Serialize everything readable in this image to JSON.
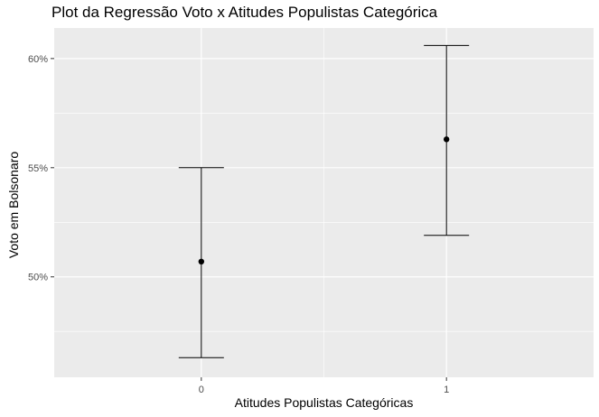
{
  "chart_data": {
    "type": "scatter",
    "title": "Plot da Regressão Voto x Atitudes Populistas Categórica",
    "xlabel": "Atitudes Populistas Categóricas",
    "ylabel": "Voto em Bolsonaro",
    "categories": [
      "0",
      "1"
    ],
    "points": [
      {
        "x": "0",
        "y": 0.507,
        "lower": 0.463,
        "upper": 0.55
      },
      {
        "x": "1",
        "y": 0.563,
        "lower": 0.519,
        "upper": 0.606
      }
    ],
    "yticks": [
      0.5,
      0.55,
      0.6
    ],
    "ytick_labels": [
      "50%",
      "55%",
      "60%"
    ],
    "ylim": [
      0.454,
      0.614
    ],
    "grid": true,
    "colors": {
      "panel": "#ebebeb",
      "grid": "#ffffff",
      "marks": "#000000",
      "tick_text": "#4d4d4d"
    }
  }
}
